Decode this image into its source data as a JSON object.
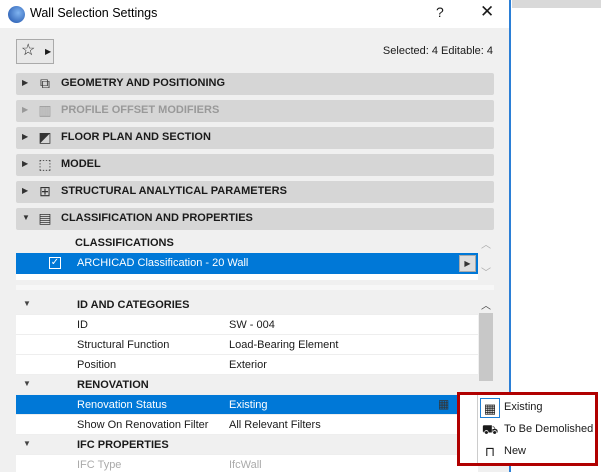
{
  "window": {
    "title": "Wall Selection Settings",
    "help": "?",
    "close": "✕"
  },
  "toolbar": {
    "favorites_icon": "star-icon",
    "selection_info": "Selected: 4 Editable: 4"
  },
  "sections": [
    {
      "label": "GEOMETRY AND POSITIONING",
      "icon": "geometry-icon",
      "expanded": false,
      "disabled": false
    },
    {
      "label": "PROFILE OFFSET MODIFIERS",
      "icon": "profile-icon",
      "expanded": false,
      "disabled": true
    },
    {
      "label": "FLOOR PLAN AND SECTION",
      "icon": "floor-plan-icon",
      "expanded": false,
      "disabled": false
    },
    {
      "label": "MODEL",
      "icon": "model-icon",
      "expanded": false,
      "disabled": false
    },
    {
      "label": "STRUCTURAL ANALYTICAL PARAMETERS",
      "icon": "structural-icon",
      "expanded": false,
      "disabled": false
    },
    {
      "label": "CLASSIFICATION AND PROPERTIES",
      "icon": "classification-icon",
      "expanded": true,
      "disabled": false
    }
  ],
  "classifications": {
    "header": "CLASSIFICATIONS",
    "row": {
      "checked": true,
      "name": "ARCHICAD Classification - 20",
      "value": "Wall"
    }
  },
  "properties": [
    {
      "type": "group",
      "label": "ID AND CATEGORIES"
    },
    {
      "type": "item",
      "name": "ID",
      "value": "SW - 004"
    },
    {
      "type": "item",
      "name": "Structural Function",
      "value": "Load-Bearing Element"
    },
    {
      "type": "item",
      "name": "Position",
      "value": "Exterior"
    },
    {
      "type": "group",
      "label": "RENOVATION"
    },
    {
      "type": "item",
      "name": "Renovation Status",
      "value": "Existing",
      "selected": true
    },
    {
      "type": "item",
      "name": "Show On Renovation Filter",
      "value": "All Relevant Filters"
    },
    {
      "type": "group",
      "label": "IFC PROPERTIES"
    },
    {
      "type": "item",
      "name": "IFC Type",
      "value": "IfcWall",
      "disabled": true
    }
  ],
  "renovation_popup": {
    "items": [
      {
        "label": "Existing",
        "icon": "brick-wall-icon",
        "selected": true
      },
      {
        "label": "To Be Demolished",
        "icon": "bulldozer-icon"
      },
      {
        "label": "New",
        "icon": "crane-icon"
      }
    ]
  },
  "colors": {
    "selection": "#0078d7",
    "highlight_border": "#b00000"
  }
}
